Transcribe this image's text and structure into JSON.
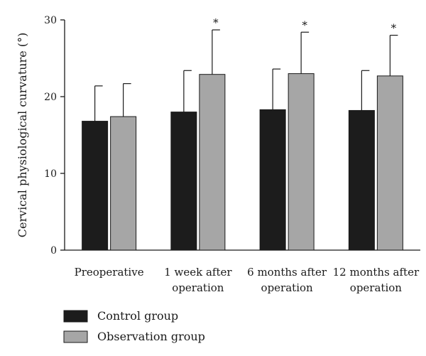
{
  "chart_data": {
    "type": "bar",
    "ylabel": "Cervical physiological curvature (°)",
    "ylim": [
      0,
      30
    ],
    "yticks": [
      0,
      10,
      20,
      30
    ],
    "categories": [
      [
        "Preoperative"
      ],
      [
        "1 week after",
        "operation"
      ],
      [
        "6 months after",
        "operation"
      ],
      [
        "12 months after",
        "operation"
      ]
    ],
    "series": [
      {
        "name": "Control group",
        "color": "#1c1c1c",
        "values": [
          16.8,
          18.0,
          18.3,
          18.2
        ],
        "errors": [
          4.6,
          5.4,
          5.3,
          5.2
        ],
        "significance": [
          "",
          "",
          "",
          ""
        ]
      },
      {
        "name": "Observation group",
        "color": "#a6a6a6",
        "values": [
          17.4,
          22.9,
          23.0,
          22.7
        ],
        "errors": [
          4.3,
          5.8,
          5.4,
          5.3
        ],
        "significance": [
          "",
          "*",
          "*",
          "*"
        ]
      }
    ],
    "grid": false,
    "legend_position": "bottom-left"
  }
}
